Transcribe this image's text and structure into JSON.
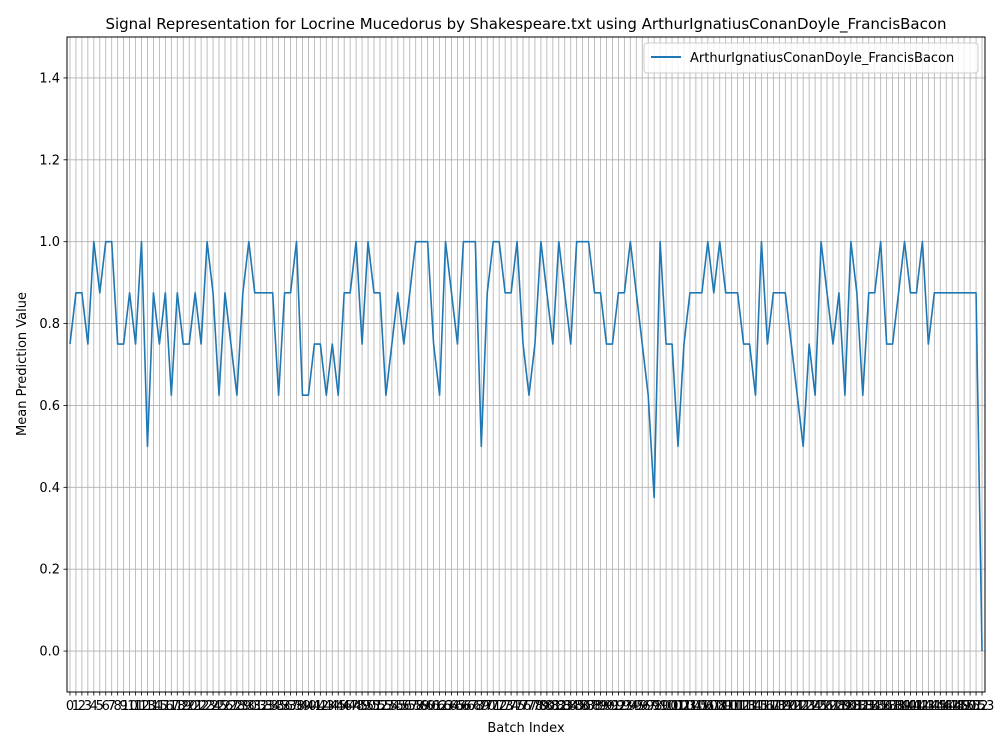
{
  "chart_data": {
    "type": "line",
    "title": "Signal Representation for Locrine Mucedorus by Shakespeare.txt using ArthurIgnatiusConanDoyle_FrancisBacon",
    "xlabel": "Batch Index",
    "ylabel": "Mean Prediction Value",
    "ylim": [
      -0.1,
      1.5
    ],
    "xlim": [
      -0.5,
      153.5
    ],
    "yticks": [
      0.0,
      0.2,
      0.4,
      0.6,
      0.8,
      1.0,
      1.2,
      1.4
    ],
    "ytick_labels": [
      "0.0",
      "0.2",
      "0.4",
      "0.6",
      "0.8",
      "1.0",
      "1.2",
      "1.4"
    ],
    "grid": true,
    "legend_position": "top-right",
    "series": [
      {
        "name": "ArthurIgnatiusConanDoyle_FrancisBacon",
        "color": "#1f77b4",
        "values": [
          0.75,
          0.875,
          0.875,
          0.75,
          1.0,
          0.875,
          1.0,
          1.0,
          0.75,
          0.75,
          0.875,
          0.75,
          1.0,
          0.5,
          0.875,
          0.75,
          0.875,
          0.625,
          0.875,
          0.75,
          0.75,
          0.875,
          0.75,
          1.0,
          0.875,
          0.625,
          0.875,
          0.75,
          0.625,
          0.875,
          1.0,
          0.875,
          0.875,
          0.875,
          0.875,
          0.625,
          0.875,
          0.875,
          1.0,
          0.625,
          0.625,
          0.75,
          0.75,
          0.625,
          0.75,
          0.625,
          0.875,
          0.875,
          1.0,
          0.75,
          1.0,
          0.875,
          0.875,
          0.625,
          0.75,
          0.875,
          0.75,
          0.875,
          1.0,
          1.0,
          1.0,
          0.75,
          0.625,
          1.0,
          0.875,
          0.75,
          1.0,
          1.0,
          1.0,
          0.5,
          0.875,
          1.0,
          1.0,
          0.875,
          0.875,
          1.0,
          0.75,
          0.625,
          0.75,
          1.0,
          0.875,
          0.75,
          1.0,
          0.875,
          0.75,
          1.0,
          1.0,
          1.0,
          0.875,
          0.875,
          0.75,
          0.75,
          0.875,
          0.875,
          1.0,
          0.875,
          0.75,
          0.625,
          0.375,
          1.0,
          0.75,
          0.75,
          0.5,
          0.75,
          0.875,
          0.875,
          0.875,
          1.0,
          0.875,
          1.0,
          0.875,
          0.875,
          0.875,
          0.75,
          0.75,
          0.625,
          1.0,
          0.75,
          0.875,
          0.875,
          0.875,
          0.75,
          0.625,
          0.5,
          0.75,
          0.625,
          1.0,
          0.875,
          0.75,
          0.875,
          0.625,
          1.0,
          0.875,
          0.625,
          0.875,
          0.875,
          1.0,
          0.75,
          0.75,
          0.875,
          1.0,
          0.875,
          0.875,
          1.0,
          0.75,
          0.875,
          0.875,
          0.875,
          0.875,
          0.875,
          0.875,
          0.875,
          0.875,
          0.0
        ]
      }
    ]
  }
}
